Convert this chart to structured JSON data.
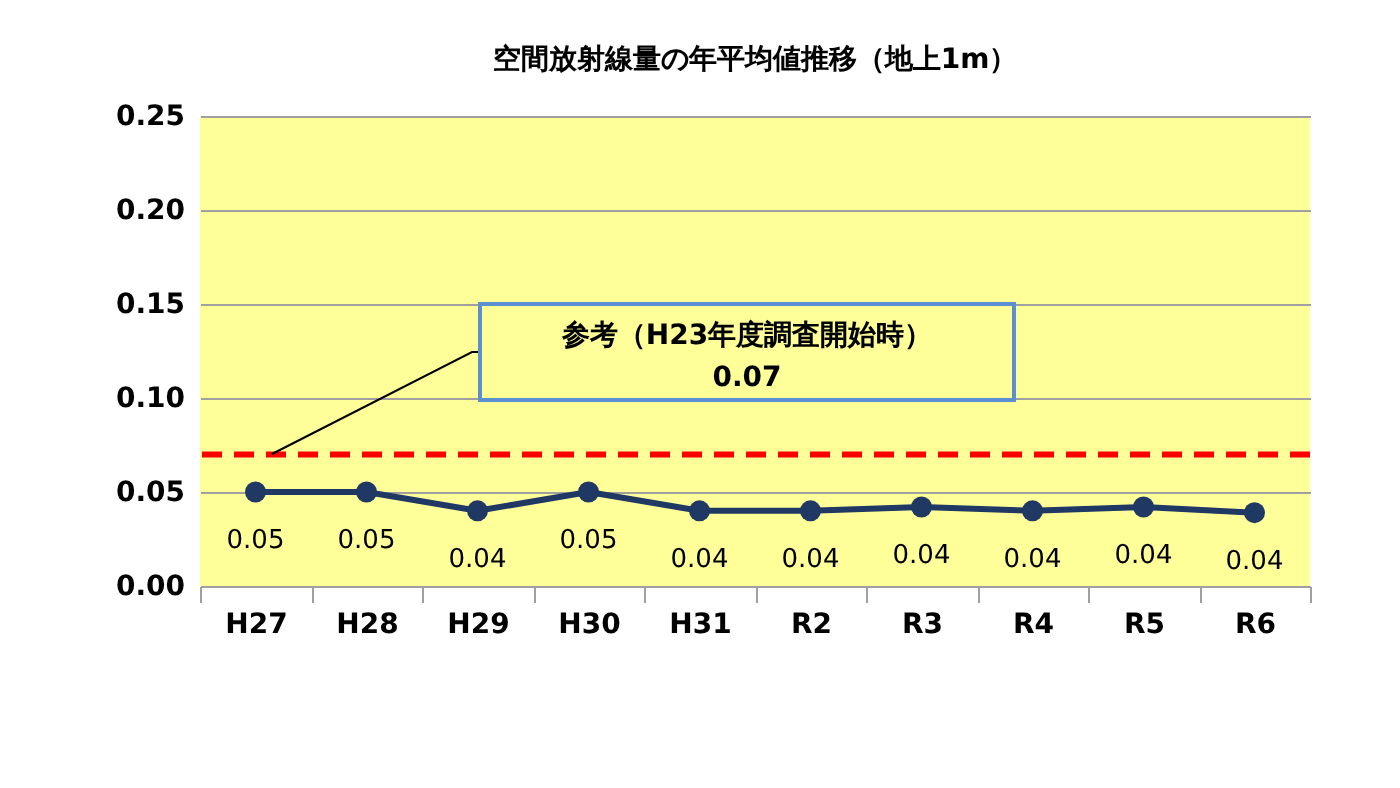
{
  "chart_data": {
    "type": "line",
    "title": "空間放射線量の年平均値推移（地上1m）",
    "categories": [
      "H27",
      "H28",
      "H29",
      "H30",
      "H31",
      "R2",
      "R3",
      "R4",
      "R5",
      "R6"
    ],
    "series": [
      {
        "color": "#1f3864",
        "values": [
          0.05,
          0.05,
          0.04,
          0.05,
          0.04,
          0.04,
          0.042,
          0.04,
          0.042,
          0.039
        ],
        "value_labels": [
          "0.05",
          "0.05",
          "0.04",
          "0.05",
          "0.04",
          "0.04",
          "0.04",
          "0.04",
          "0.04",
          "0.04"
        ]
      }
    ],
    "ylim": [
      0,
      0.25
    ],
    "yticks": [
      {
        "value": 0,
        "label": "0.00"
      },
      0.05,
      {
        "value": 0.1,
        "label": "0.10"
      },
      0.15,
      {
        "value": 0.2,
        "label": "0.20"
      },
      0.25
    ],
    "annotations": [
      "参考（H23年度調査開始時）",
      "0.07"
    ],
    "grid": "y",
    "marker": "circle",
    "line_style": "solid",
    "ref_lines": [
      {
        "axis": "y",
        "value": 0.07,
        "color": "#ff0000",
        "line_style": "dashed"
      }
    ]
  }
}
